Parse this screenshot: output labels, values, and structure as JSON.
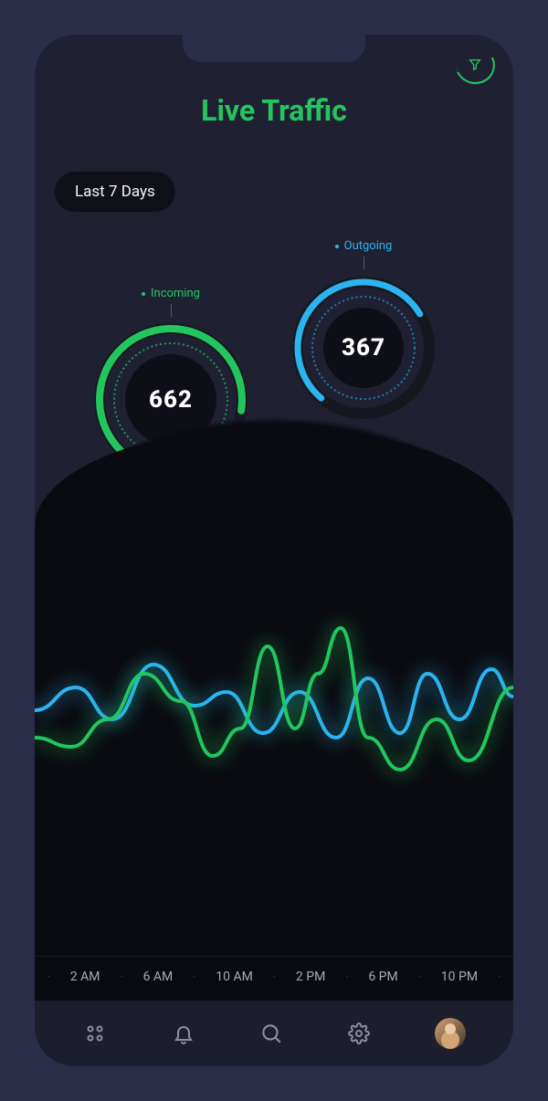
{
  "header": {
    "title": "Live Traffic",
    "title_color": "#22c55e",
    "filter_icon_color": "#22c55e"
  },
  "range_pill": {
    "label": "Last 7 Days",
    "bg": "#101118",
    "text_color": "#f5f5f5"
  },
  "gauges": {
    "incoming": {
      "label": "Incoming",
      "label_color": "#22c55e",
      "value": "662",
      "ring_color": "#22c55e",
      "ring_bg": "#1a1c28",
      "fill_percent": 0.72,
      "diameter": 170
    },
    "outgoing": {
      "label": "Outgoing",
      "label_color": "#2bb4f0",
      "value": "367",
      "ring_color": "#2bb4f0",
      "ring_bg": "#1a1c28",
      "fill_percent": 0.55,
      "diameter": 160
    }
  },
  "chart": {
    "type": "line",
    "background_color": "#0a0b10",
    "x_labels": [
      "2 AM",
      "6 AM",
      "10 AM",
      "2 PM",
      "6 PM",
      "10 PM"
    ],
    "x_label_color": "#a8a9b5",
    "series": [
      {
        "name": "incoming",
        "color": "#22c55e",
        "stroke_width": 4,
        "points": [
          [
            0,
            140
          ],
          [
            40,
            150
          ],
          [
            80,
            120
          ],
          [
            120,
            70
          ],
          [
            160,
            100
          ],
          [
            195,
            160
          ],
          [
            225,
            130
          ],
          [
            255,
            40
          ],
          [
            285,
            130
          ],
          [
            310,
            70
          ],
          [
            335,
            20
          ],
          [
            365,
            140
          ],
          [
            400,
            175
          ],
          [
            440,
            120
          ],
          [
            475,
            165
          ],
          [
            524,
            85
          ]
        ]
      },
      {
        "name": "outgoing",
        "color": "#2bb4f0",
        "stroke_width": 4,
        "points": [
          [
            0,
            110
          ],
          [
            45,
            85
          ],
          [
            85,
            120
          ],
          [
            130,
            60
          ],
          [
            175,
            105
          ],
          [
            210,
            90
          ],
          [
            250,
            135
          ],
          [
            290,
            90
          ],
          [
            330,
            140
          ],
          [
            365,
            75
          ],
          [
            400,
            135
          ],
          [
            430,
            70
          ],
          [
            465,
            120
          ],
          [
            500,
            65
          ],
          [
            524,
            95
          ]
        ]
      }
    ]
  },
  "bottom_nav": {
    "bg": "#1c1e2e",
    "icon_color": "#8b8d9e",
    "items": [
      "apps",
      "bell",
      "search",
      "settings",
      "avatar"
    ]
  },
  "colors": {
    "frame": "#2a2d48",
    "screen": "#1f2133"
  }
}
